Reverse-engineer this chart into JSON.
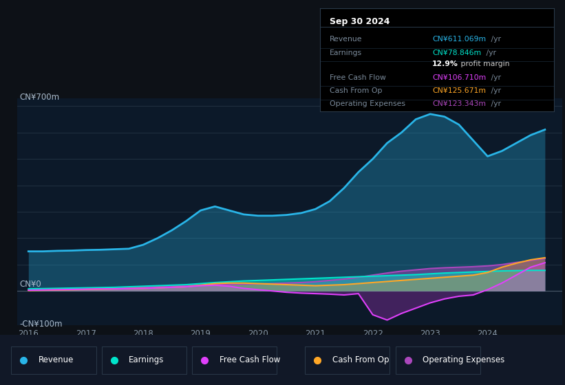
{
  "bg_color": "#0d1117",
  "plot_bg_color": "#0c1929",
  "ylabel_700": "CN¥700m",
  "ylabel_0": "CN¥0",
  "ylabel_neg100": "-CN¥100m",
  "colors": {
    "revenue": "#29b5e8",
    "earnings": "#00e5cc",
    "free_cash_flow": "#e040fb",
    "cash_from_op": "#ffa726",
    "operating_expenses": "#ab47bc"
  },
  "tooltip_title": "Sep 30 2024",
  "tooltip_rows": [
    [
      "Revenue",
      "CN¥611.069m",
      " /yr",
      "#29b5e8"
    ],
    [
      "Earnings",
      "CN¥78.846m",
      " /yr",
      "#00e5cc"
    ],
    [
      "",
      "12.9%",
      " profit margin",
      "#ffffff"
    ],
    [
      "Free Cash Flow",
      "CN¥106.710m",
      " /yr",
      "#e040fb"
    ],
    [
      "Cash From Op",
      "CN¥125.671m",
      " /yr",
      "#ffa726"
    ],
    [
      "Operating Expenses",
      "CN¥123.343m",
      " /yr",
      "#ab47bc"
    ]
  ],
  "legend_items": [
    [
      "Revenue",
      "#29b5e8"
    ],
    [
      "Earnings",
      "#00e5cc"
    ],
    [
      "Free Cash Flow",
      "#e040fb"
    ],
    [
      "Cash From Op",
      "#ffa726"
    ],
    [
      "Operating Expenses",
      "#ab47bc"
    ]
  ],
  "x": [
    2016.0,
    2016.25,
    2016.5,
    2016.75,
    2017.0,
    2017.25,
    2017.5,
    2017.75,
    2018.0,
    2018.25,
    2018.5,
    2018.75,
    2019.0,
    2019.25,
    2019.5,
    2019.75,
    2020.0,
    2020.25,
    2020.5,
    2020.75,
    2021.0,
    2021.25,
    2021.5,
    2021.75,
    2022.0,
    2022.25,
    2022.5,
    2022.75,
    2023.0,
    2023.25,
    2023.5,
    2023.75,
    2024.0,
    2024.25,
    2024.5,
    2024.75,
    2025.0
  ],
  "revenue": [
    150,
    150,
    152,
    153,
    155,
    156,
    158,
    160,
    175,
    200,
    230,
    265,
    305,
    320,
    305,
    290,
    285,
    285,
    288,
    295,
    310,
    340,
    390,
    450,
    500,
    560,
    600,
    650,
    670,
    660,
    630,
    570,
    510,
    530,
    560,
    590,
    611
  ],
  "earnings": [
    8,
    9,
    10,
    11,
    12,
    13,
    14,
    16,
    18,
    20,
    22,
    24,
    28,
    32,
    35,
    38,
    40,
    42,
    44,
    46,
    48,
    50,
    52,
    54,
    56,
    58,
    60,
    62,
    65,
    68,
    70,
    72,
    74,
    76,
    77,
    78,
    78
  ],
  "free_cash_flow": [
    3,
    4,
    5,
    6,
    7,
    8,
    8,
    9,
    10,
    12,
    14,
    16,
    20,
    22,
    18,
    10,
    5,
    0,
    -5,
    -8,
    -10,
    -12,
    -15,
    -10,
    -90,
    -110,
    -85,
    -65,
    -45,
    -30,
    -20,
    -15,
    5,
    30,
    60,
    90,
    107
  ],
  "cash_from_op": [
    2,
    3,
    4,
    5,
    6,
    7,
    8,
    9,
    10,
    12,
    14,
    16,
    22,
    28,
    30,
    30,
    28,
    26,
    24,
    22,
    20,
    22,
    24,
    28,
    32,
    36,
    40,
    44,
    48,
    52,
    56,
    60,
    70,
    90,
    105,
    118,
    126
  ],
  "operating_expenses": [
    3,
    4,
    5,
    6,
    7,
    8,
    10,
    12,
    14,
    16,
    18,
    20,
    22,
    24,
    25,
    26,
    27,
    28,
    30,
    32,
    35,
    40,
    45,
    52,
    60,
    68,
    75,
    80,
    85,
    88,
    90,
    92,
    95,
    100,
    108,
    115,
    123
  ],
  "xlim": [
    2015.8,
    2025.3
  ],
  "ylim": [
    -130,
    730
  ],
  "xticks": [
    2016,
    2017,
    2018,
    2019,
    2020,
    2021,
    2022,
    2023,
    2024
  ],
  "grid_lines": [
    0,
    100,
    200,
    300,
    400,
    500,
    600,
    700
  ]
}
